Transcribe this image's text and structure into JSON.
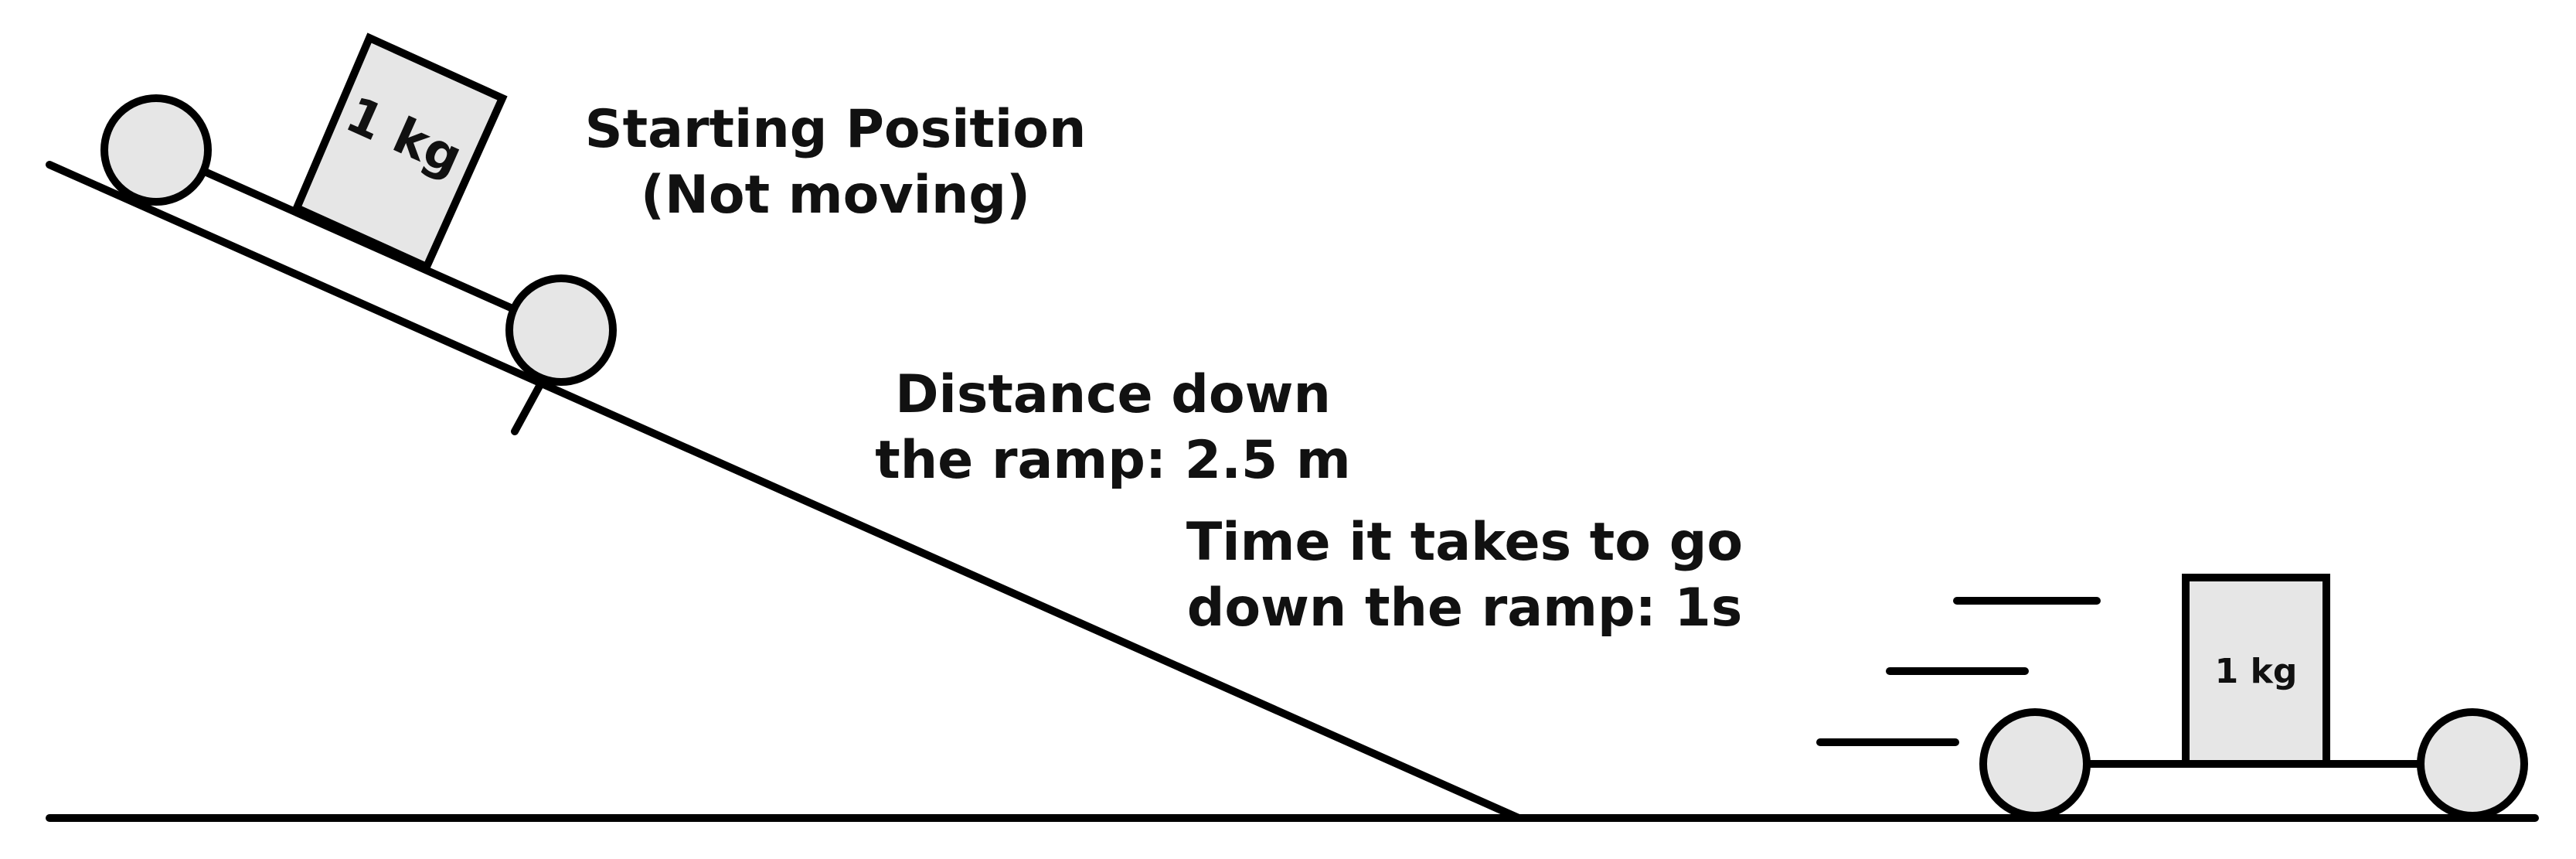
{
  "diagram": {
    "start_label_line1": "Starting Position",
    "start_label_line2": "(Not moving)",
    "distance_label_line1": "Distance down",
    "distance_label_line2": "the ramp: 2.5 m",
    "time_label_line1": "Time it takes to go",
    "time_label_line2": "down the ramp: 1s",
    "cart_top_mass": "1 kg",
    "cart_bottom_mass": "1 kg"
  },
  "colors": {
    "stroke": "#000000",
    "fill_gray": "#e6e6e6",
    "background": "#ffffff"
  }
}
